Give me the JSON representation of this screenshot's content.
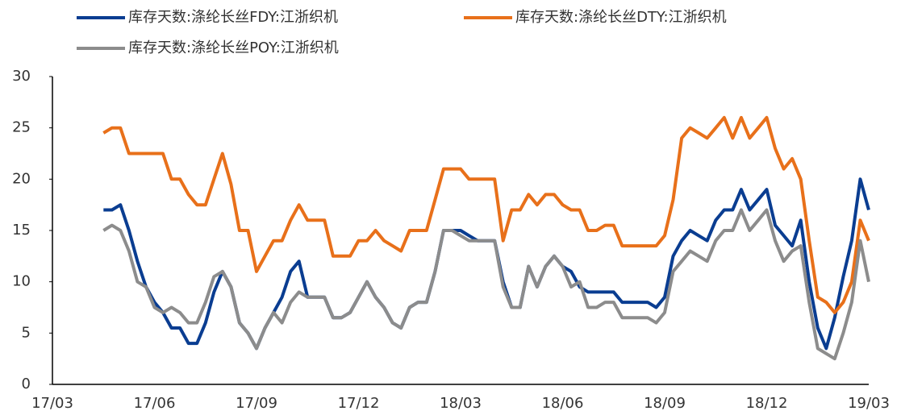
{
  "chart_data": {
    "type": "line",
    "categories": [
      "17/03",
      null,
      null,
      null,
      null,
      null,
      null,
      null,
      null,
      null,
      null,
      null,
      "17/06",
      null,
      null,
      null,
      null,
      null,
      null,
      null,
      null,
      null,
      null,
      null,
      "17/09",
      null,
      null,
      null,
      null,
      null,
      null,
      null,
      null,
      null,
      null,
      null,
      "17/12",
      null,
      null,
      null,
      null,
      null,
      null,
      null,
      null,
      null,
      null,
      null,
      "18/03",
      null,
      null,
      null,
      null,
      null,
      null,
      null,
      null,
      null,
      null,
      null,
      "18/06",
      null,
      null,
      null,
      null,
      null,
      null,
      null,
      null,
      null,
      null,
      null,
      "18/09",
      null,
      null,
      null,
      null,
      null,
      null,
      null,
      null,
      null,
      null,
      null,
      "18/12",
      null,
      null,
      null,
      null,
      null,
      null,
      null,
      null,
      null,
      null,
      null,
      "19/03"
    ],
    "series": [
      {
        "name": "库存天数:涤纶长丝FDY:江浙织机",
        "color": "#0a3d91",
        "values": [
          null,
          null,
          null,
          null,
          null,
          null,
          17,
          17,
          17.5,
          15,
          12,
          9.5,
          8,
          7,
          5.5,
          5.5,
          4,
          4,
          6,
          9,
          11,
          9.5,
          6,
          5,
          3.5,
          5.5,
          7,
          8.5,
          11,
          12,
          8.5,
          8.5,
          8.5,
          6.5,
          6.5,
          7,
          8.5,
          10,
          8.5,
          7.5,
          6,
          5.5,
          7.5,
          8,
          8,
          11,
          15,
          15,
          15,
          14.5,
          14,
          14,
          14,
          10,
          7.5,
          7.5,
          11.5,
          9.5,
          11.5,
          12.5,
          11.5,
          11,
          9.5,
          9,
          9,
          9,
          9,
          8,
          8,
          8,
          8,
          7.5,
          8.5,
          12.5,
          14,
          15,
          14.5,
          14,
          16,
          17,
          17,
          19,
          17,
          18,
          19,
          15.5,
          14.5,
          13.5,
          16,
          10,
          5.5,
          3.5,
          6.5,
          10.5,
          14,
          20,
          17
        ]
      },
      {
        "name": "库存天数:涤纶长丝DTY:江浙织机",
        "color": "#e8701a",
        "values": [
          null,
          null,
          null,
          null,
          null,
          null,
          24.5,
          25,
          25,
          22.5,
          22.5,
          22.5,
          22.5,
          22.5,
          20,
          20,
          18.5,
          17.5,
          17.5,
          20,
          22.5,
          19.5,
          15,
          15,
          11,
          12.5,
          14,
          14,
          16,
          17.5,
          16,
          16,
          16,
          12.5,
          12.5,
          12.5,
          14,
          14,
          15,
          14,
          13.5,
          13,
          15,
          15,
          15,
          18,
          21,
          21,
          21,
          20,
          20,
          20,
          20,
          14,
          17,
          17,
          18.5,
          17.5,
          18.5,
          18.5,
          17.5,
          17,
          17,
          15,
          15,
          15.5,
          15.5,
          13.5,
          13.5,
          13.5,
          13.5,
          13.5,
          14.5,
          18,
          24,
          25,
          24.5,
          24,
          25,
          26,
          24,
          26,
          24,
          25,
          26,
          23,
          21,
          22,
          20,
          14,
          8.5,
          8,
          7,
          8,
          10,
          16,
          14
        ]
      },
      {
        "name": "库存天数:涤纶长丝POY:江浙织机",
        "color": "#8c8c8c",
        "values": [
          null,
          null,
          null,
          null,
          null,
          null,
          15,
          15.5,
          15,
          13,
          10,
          9.5,
          7.5,
          7,
          7.5,
          7,
          6,
          6,
          8,
          10.5,
          11,
          9.5,
          6,
          5,
          3.5,
          5.5,
          7,
          6,
          8,
          9,
          8.5,
          8.5,
          8.5,
          6.5,
          6.5,
          7,
          8.5,
          10,
          8.5,
          7.5,
          6,
          5.5,
          7.5,
          8,
          8,
          11,
          15,
          15,
          14.5,
          14,
          14,
          14,
          14,
          9.5,
          7.5,
          7.5,
          11.5,
          9.5,
          11.5,
          12.5,
          11.5,
          9.5,
          10,
          7.5,
          7.5,
          8,
          8,
          6.5,
          6.5,
          6.5,
          6.5,
          6,
          7,
          11,
          12,
          13,
          12.5,
          12,
          14,
          15,
          15,
          17,
          15,
          16,
          17,
          14,
          12,
          13,
          13.5,
          8,
          3.5,
          3,
          2.5,
          5,
          8,
          14,
          10
        ]
      }
    ],
    "ylim": [
      0,
      30
    ],
    "yticks": [
      0,
      5,
      10,
      15,
      20,
      25,
      30
    ],
    "grid": false
  }
}
